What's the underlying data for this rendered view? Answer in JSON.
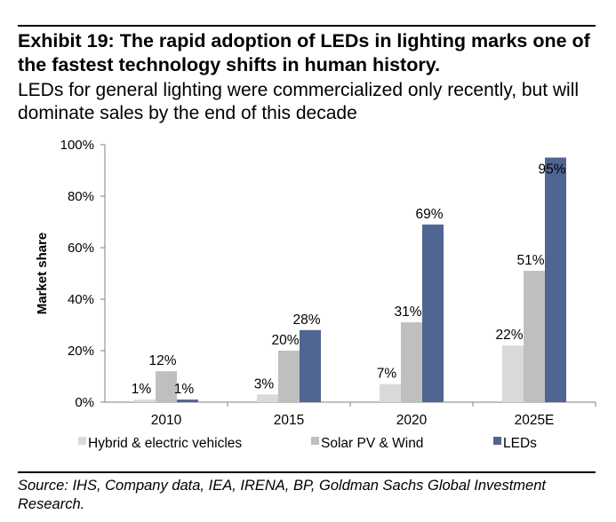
{
  "title": "Exhibit 19: The rapid adoption of LEDs in lighting marks one of the fastest technology shifts in human history.",
  "subtitle": "LEDs for general lighting were commercialized only recently, but will dominate sales by the end of this decade",
  "source": "Source: IHS, Company data, IEA, IRENA, BP, Goldman Sachs Global Investment Research.",
  "chart_data": {
    "type": "bar",
    "categories": [
      "2010",
      "2015",
      "2020",
      "2025E"
    ],
    "series": [
      {
        "name": "Hybrid & electric vehicles",
        "values": [
          1,
          3,
          7,
          22
        ],
        "labels": [
          "1%",
          "3%",
          "7%",
          "22%"
        ],
        "color": "#d9d9d9"
      },
      {
        "name": "Solar PV & Wind",
        "values": [
          12,
          20,
          31,
          51
        ],
        "labels": [
          "12%",
          "20%",
          "31%",
          "51%"
        ],
        "color": "#bfbfbf"
      },
      {
        "name": "LEDs",
        "values": [
          1,
          28,
          69,
          95
        ],
        "labels": [
          "1%",
          "28%",
          "69%",
          "95%"
        ],
        "color": "#4f6592"
      }
    ],
    "ylabel": "Market share",
    "ylim": [
      0,
      100
    ],
    "yticks": [
      "0%",
      "20%",
      "40%",
      "60%",
      "80%",
      "100%"
    ],
    "grid": false,
    "legend": "bottom"
  }
}
